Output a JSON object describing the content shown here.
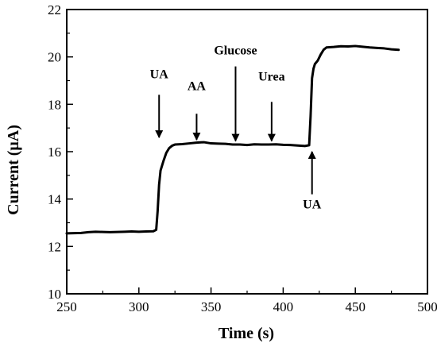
{
  "chart_data": {
    "type": "line",
    "title": "",
    "xlabel": "Time (s)",
    "ylabel": "Current (μA)",
    "xlim": [
      250,
      500
    ],
    "ylim": [
      10,
      22
    ],
    "xticks": [
      250,
      300,
      350,
      400,
      450,
      500
    ],
    "yticks": [
      10,
      12,
      14,
      16,
      18,
      20,
      22
    ],
    "x_minor_step": 25,
    "y_minor_step": 1,
    "grid": false,
    "legend": "none",
    "line_color": "#000000",
    "series": [
      {
        "x": [
          250,
          255,
          260,
          265,
          270,
          275,
          280,
          285,
          290,
          295,
          300,
          305,
          310,
          312,
          313,
          314,
          315,
          317,
          319,
          321,
          323,
          325,
          330,
          335,
          340,
          345,
          350,
          355,
          360,
          365,
          370,
          375,
          380,
          385,
          390,
          395,
          400,
          405,
          410,
          415,
          418,
          419,
          420,
          421,
          422,
          424,
          426,
          428,
          430,
          435,
          440,
          445,
          450,
          455,
          460,
          465,
          470,
          475,
          480
        ],
        "y": [
          12.55,
          12.56,
          12.57,
          12.6,
          12.62,
          12.61,
          12.6,
          12.61,
          12.62,
          12.63,
          12.62,
          12.63,
          12.64,
          12.7,
          13.5,
          14.6,
          15.2,
          15.6,
          15.95,
          16.15,
          16.25,
          16.3,
          16.32,
          16.35,
          16.38,
          16.4,
          16.35,
          16.34,
          16.33,
          16.3,
          16.3,
          16.28,
          16.31,
          16.3,
          16.3,
          16.31,
          16.29,
          16.28,
          16.26,
          16.24,
          16.27,
          17.5,
          19.1,
          19.5,
          19.7,
          19.85,
          20.1,
          20.3,
          20.4,
          20.42,
          20.45,
          20.44,
          20.46,
          20.43,
          20.4,
          20.38,
          20.36,
          20.32,
          20.3
        ]
      }
    ],
    "annotations": [
      {
        "text": "UA",
        "x": 314,
        "direction": "down",
        "arrow_from": 18.4,
        "arrow_to": 16.6,
        "label_y": 19.1
      },
      {
        "text": "AA",
        "x": 340,
        "direction": "down",
        "arrow_from": 17.6,
        "arrow_to": 16.5,
        "label_y": 18.6
      },
      {
        "text": "Glucose",
        "x": 367,
        "direction": "down",
        "arrow_from": 19.6,
        "arrow_to": 16.45,
        "label_y": 20.1
      },
      {
        "text": "Urea",
        "x": 392,
        "direction": "down",
        "arrow_from": 18.1,
        "arrow_to": 16.45,
        "label_y": 19.0
      },
      {
        "text": "UA",
        "x": 420,
        "direction": "up",
        "arrow_from": 14.2,
        "arrow_to": 16.0,
        "label_y": 13.6
      }
    ]
  }
}
